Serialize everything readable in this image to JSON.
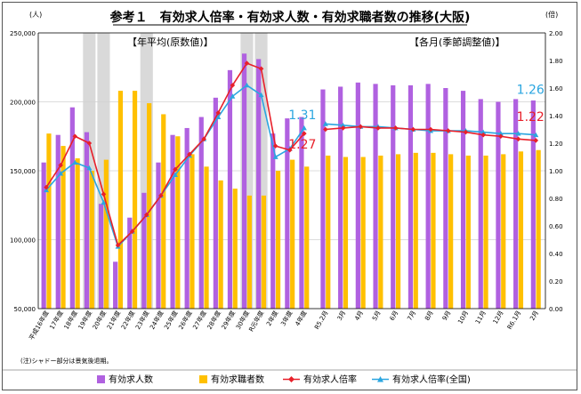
{
  "chart_data": {
    "type": "bar+line",
    "title": "参考１　有効求人倍率・有効求人数・有効求職者数の推移(大阪)",
    "left_unit": "(人)",
    "right_unit": "(倍)",
    "y_left_ticks": [
      "50,000",
      "100,000",
      "150,000",
      "200,000",
      "250,000"
    ],
    "y_right_ticks": [
      "0.00",
      "0.20",
      "0.40",
      "0.60",
      "0.80",
      "1.00",
      "1.20",
      "1.40",
      "1.60",
      "1.80",
      "2.00"
    ],
    "ylim_left": [
      50000,
      250000
    ],
    "ylim_right": [
      0,
      2
    ],
    "section_labels": {
      "annual": "【年平均(原数値)】",
      "monthly": "【各月(季節調整値)】"
    },
    "annual_categories": [
      "平成16年度",
      "17年度",
      "18年度",
      "19年度",
      "20年度",
      "21年度",
      "22年度",
      "23年度",
      "24年度",
      "25年度",
      "26年度",
      "27年度",
      "28年度",
      "29年度",
      "30年度",
      "R元年度",
      "2年度",
      "3年度",
      "4年度"
    ],
    "monthly_categories": [
      "R5.2月",
      "3月",
      "4月",
      "5月",
      "6月",
      "7月",
      "8月",
      "9月",
      "10月",
      "11月",
      "12月",
      "R6.1月",
      "2月"
    ],
    "shaded_annual_index": [
      3,
      4,
      7,
      14,
      15
    ],
    "series": [
      {
        "name": "有効求人数",
        "color": "#B061E0",
        "annual": [
          156000,
          176000,
          196000,
          178000,
          126000,
          84000,
          116000,
          134000,
          156000,
          176000,
          181000,
          189000,
          203000,
          223000,
          235000,
          231000,
          177000,
          188000,
          189000
        ],
        "monthly": [
          209000,
          211000,
          214000,
          213000,
          212000,
          212000,
          213000,
          210000,
          208000,
          202000,
          200000,
          202000,
          201000
        ]
      },
      {
        "name": "有効求職者数",
        "color": "#FFC000",
        "annual": [
          177000,
          168000,
          159000,
          150000,
          158000,
          208000,
          208000,
          199000,
          191000,
          175000,
          162000,
          153000,
          143000,
          137000,
          132000,
          132000,
          150000,
          158000,
          153000
        ],
        "monthly": [
          161000,
          160000,
          160000,
          161000,
          162000,
          163000,
          163000,
          162000,
          161000,
          161000,
          162000,
          164000,
          165000
        ]
      },
      {
        "name": "有効求人倍率",
        "color": "#E8202A",
        "annual": [
          0.88,
          1.04,
          1.25,
          1.2,
          0.83,
          0.46,
          0.56,
          0.68,
          0.82,
          1.01,
          1.12,
          1.23,
          1.42,
          1.62,
          1.78,
          1.74,
          1.18,
          1.15,
          1.27
        ],
        "monthly": [
          1.3,
          1.31,
          1.32,
          1.31,
          1.31,
          1.3,
          1.3,
          1.29,
          1.28,
          1.26,
          1.25,
          1.23,
          1.22
        ]
      },
      {
        "name": "有効求人倍率(全国)",
        "color": "#2BA6E0",
        "annual": [
          0.86,
          0.98,
          1.06,
          1.02,
          0.77,
          0.45,
          0.56,
          0.68,
          0.82,
          0.97,
          1.11,
          1.23,
          1.39,
          1.54,
          1.62,
          1.55,
          1.1,
          1.16,
          1.31
        ],
        "monthly": [
          1.34,
          1.33,
          1.32,
          1.32,
          1.31,
          1.3,
          1.29,
          1.29,
          1.29,
          1.28,
          1.27,
          1.27,
          1.26
        ]
      }
    ],
    "annotations": [
      {
        "text": "1.31",
        "series": "有効求人倍率(全国)",
        "section": "annual"
      },
      {
        "text": "1.27",
        "series": "有効求人倍率",
        "section": "annual"
      },
      {
        "text": "1.26",
        "series": "有効求人倍率(全国)",
        "section": "monthly"
      },
      {
        "text": "1.22",
        "series": "有効求人倍率",
        "section": "monthly"
      }
    ],
    "footnote": "(注)シャドー部分は景気後退期。",
    "legend_position": "bottom"
  }
}
